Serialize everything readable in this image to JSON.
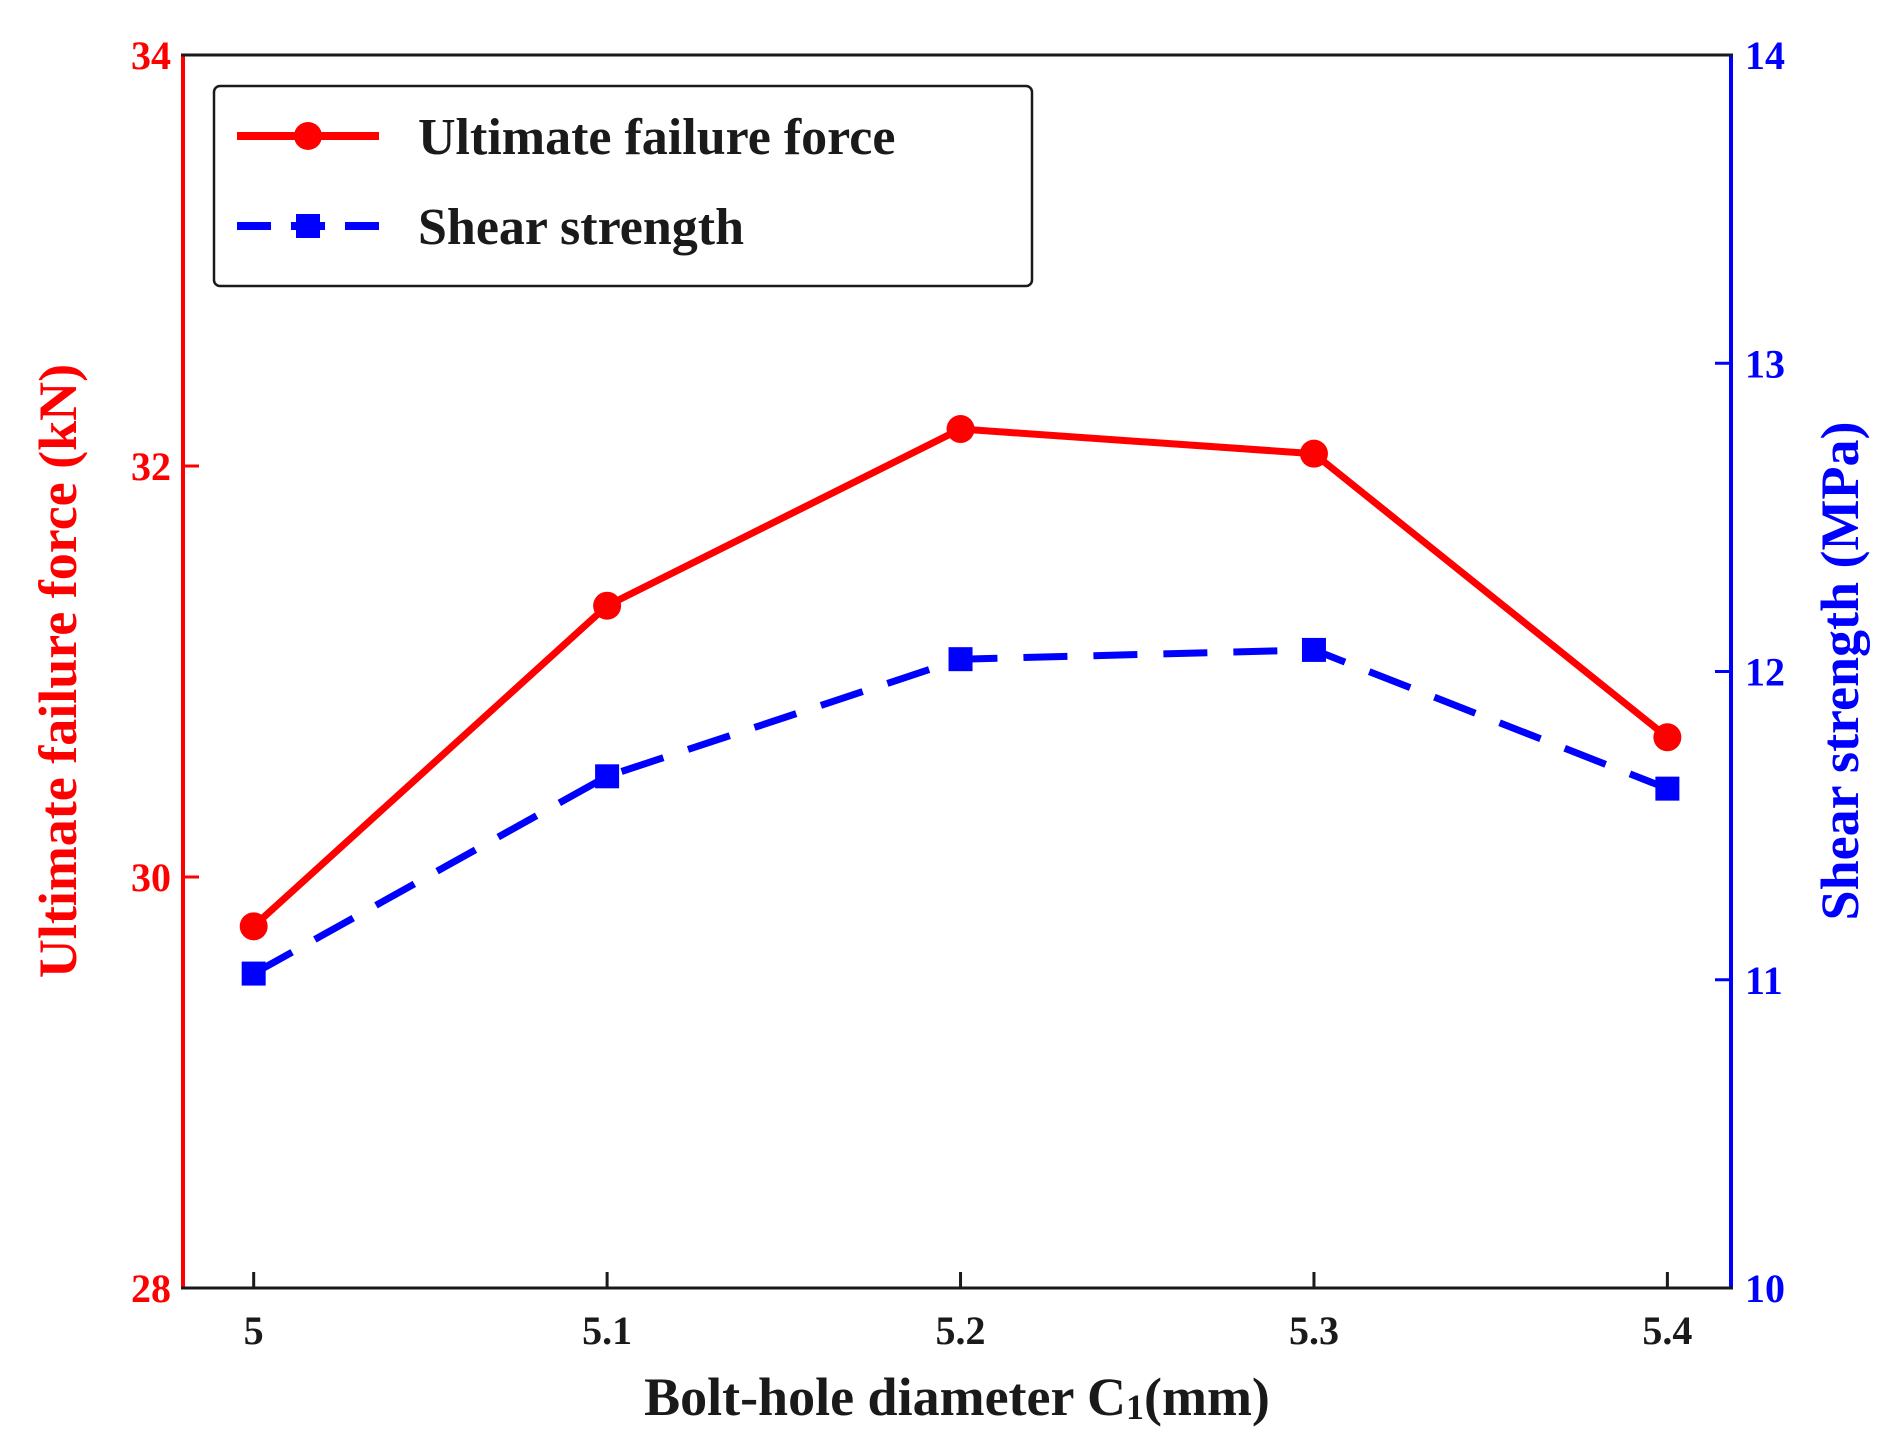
{
  "chart_data": {
    "type": "line",
    "x": [
      5,
      5.1,
      5.2,
      5.3,
      5.4
    ],
    "x_tick_labels": [
      "5",
      "5.1",
      "5.2",
      "5.3",
      "5.4"
    ],
    "xlim": [
      4.98,
      5.418
    ],
    "xlabel_main": "Bolt-hole diameter C",
    "xlabel_sub": "1",
    "xlabel_unit": "(mm)",
    "ylabel_left": "Ultimate failure force (kN)",
    "ylabel_right": "Shear strength (MPa)",
    "ylim_left": [
      28,
      34
    ],
    "ylim_right": [
      10,
      14
    ],
    "y_ticks_left": [
      "28",
      "30",
      "32",
      "34"
    ],
    "y_ticks_right": [
      "10",
      "11",
      "12",
      "13",
      "14"
    ],
    "legend_position": "top-left",
    "series": [
      {
        "name": "Ultimate failure force",
        "axis": "left",
        "color": "#ff0000",
        "style": "solid",
        "marker": "circle",
        "values": [
          29.76,
          31.32,
          32.18,
          32.06,
          30.68
        ]
      },
      {
        "name": "Shear strength",
        "axis": "right",
        "color": "#0000ff",
        "style": "dashed",
        "marker": "square",
        "values": [
          11.02,
          11.66,
          12.04,
          12.07,
          11.62
        ]
      }
    ]
  }
}
